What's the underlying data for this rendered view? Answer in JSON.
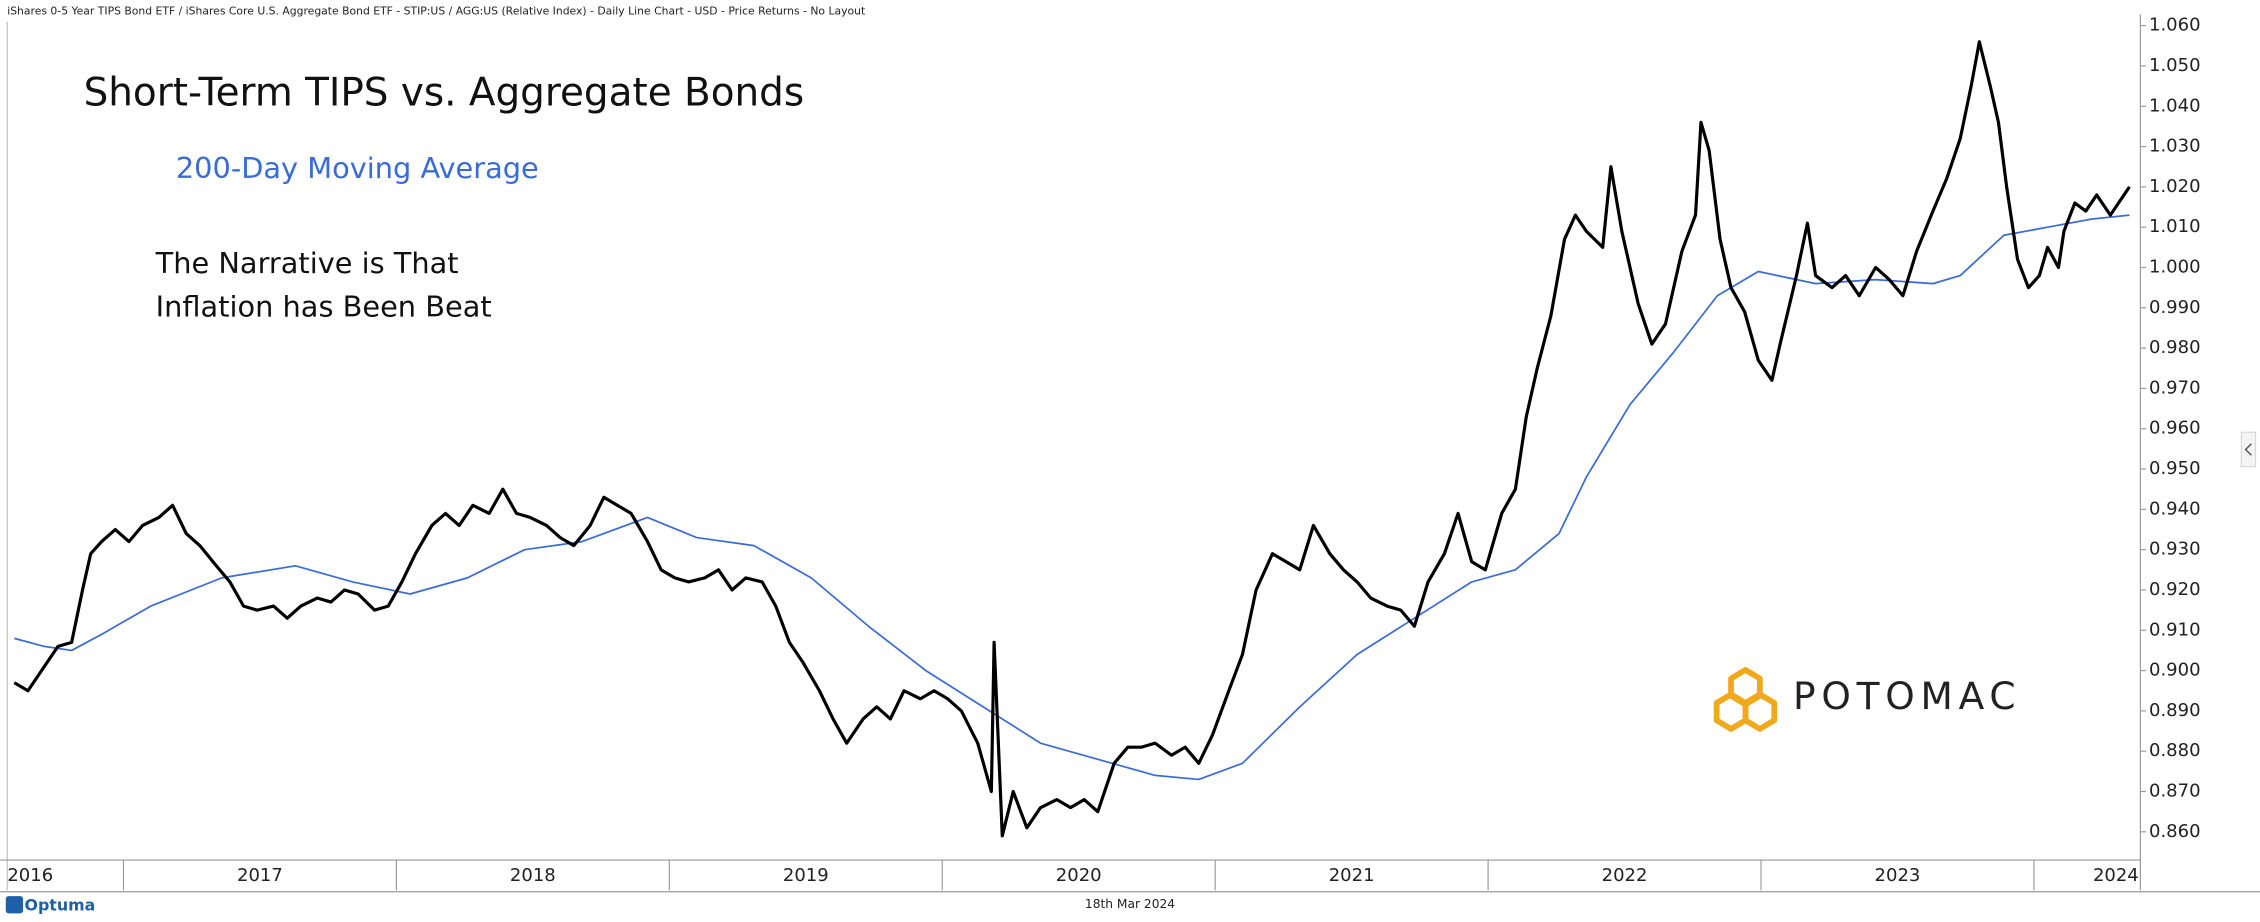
{
  "chart_data": {
    "type": "line",
    "header": "iShares 0-5 Year TIPS Bond ETF / iShares Core U.S. Aggregate Bond ETF - STIP:US / AGG:US (Relative Index) - Daily Line Chart - USD - Price Returns - No Layout",
    "title": "Short-Term TIPS vs. Aggregate Bonds",
    "annotation": [
      "The Narrative is That",
      "Inflation has Been Beat"
    ],
    "brand": "POTOMAC",
    "footer_logo": "Optuma",
    "date_label": "18th Mar 2024",
    "series": [
      {
        "color": "#000000",
        "x": [
          2016.6,
          2016.65,
          2016.68,
          2016.76,
          2016.81,
          2016.85,
          2016.88,
          2016.92,
          2016.97,
          2017.02,
          2017.07,
          2017.13,
          2017.18,
          2017.23,
          2017.28,
          2017.34,
          2017.39,
          2017.44,
          2017.49,
          2017.55,
          2017.6,
          2017.65,
          2017.71,
          2017.76,
          2017.81,
          2017.86,
          2017.92,
          2017.97,
          2018.02,
          2018.07,
          2018.13,
          2018.18,
          2018.23,
          2018.28,
          2018.34,
          2018.39,
          2018.44,
          2018.49,
          2018.55,
          2018.6,
          2018.65,
          2018.71,
          2018.76,
          2018.81,
          2018.86,
          2018.92,
          2018.97,
          2019.02,
          2019.07,
          2019.13,
          2019.18,
          2019.23,
          2019.28,
          2019.34,
          2019.39,
          2019.44,
          2019.49,
          2019.55,
          2019.6,
          2019.65,
          2019.71,
          2019.76,
          2019.81,
          2019.86,
          2019.92,
          2019.97,
          2020.02,
          2020.07,
          2020.13,
          2020.18,
          2020.19,
          2020.22,
          2020.26,
          2020.31,
          2020.36,
          2020.42,
          2020.47,
          2020.52,
          2020.57,
          2020.63,
          2020.68,
          2020.73,
          2020.78,
          2020.84,
          2020.89,
          2020.94,
          2020.99,
          2021.05,
          2021.1,
          2021.15,
          2021.21,
          2021.26,
          2021.31,
          2021.36,
          2021.42,
          2021.47,
          2021.52,
          2021.57,
          2021.63,
          2021.68,
          2021.73,
          2021.78,
          2021.84,
          2021.89,
          2021.94,
          2021.99,
          2022.05,
          2022.1,
          2022.14,
          2022.18,
          2022.23,
          2022.28,
          2022.32,
          2022.36,
          2022.42,
          2022.45,
          2022.49,
          2022.55,
          2022.6,
          2022.65,
          2022.71,
          2022.76,
          2022.78,
          2022.81,
          2022.85,
          2022.89,
          2022.94,
          2022.99,
          2023.04,
          2023.07,
          2023.13,
          2023.17,
          2023.2,
          2023.26,
          2023.31,
          2023.36,
          2023.42,
          2023.47,
          2023.52,
          2023.57,
          2023.63,
          2023.68,
          2023.73,
          2023.77,
          2023.8,
          2023.84,
          2023.87,
          2023.9,
          2023.94,
          2023.98,
          2024.02,
          2024.05,
          2024.09,
          2024.11,
          2024.15,
          2024.19,
          2024.23,
          2024.28,
          2024.31,
          2024.35
        ],
        "values": [
          0.897,
          0.895,
          0.898,
          0.906,
          0.907,
          0.92,
          0.929,
          0.932,
          0.935,
          0.932,
          0.936,
          0.938,
          0.941,
          0.934,
          0.931,
          0.926,
          0.922,
          0.916,
          0.915,
          0.916,
          0.913,
          0.916,
          0.918,
          0.917,
          0.92,
          0.919,
          0.915,
          0.916,
          0.922,
          0.929,
          0.936,
          0.939,
          0.936,
          0.941,
          0.939,
          0.945,
          0.939,
          0.938,
          0.936,
          0.933,
          0.931,
          0.936,
          0.943,
          0.941,
          0.939,
          0.932,
          0.925,
          0.923,
          0.922,
          0.923,
          0.925,
          0.92,
          0.923,
          0.922,
          0.916,
          0.907,
          0.902,
          0.895,
          0.888,
          0.882,
          0.888,
          0.891,
          0.888,
          0.895,
          0.893,
          0.895,
          0.893,
          0.89,
          0.882,
          0.87,
          0.907,
          0.859,
          0.87,
          0.861,
          0.866,
          0.868,
          0.866,
          0.868,
          0.865,
          0.877,
          0.881,
          0.881,
          0.882,
          0.879,
          0.881,
          0.877,
          0.884,
          0.895,
          0.904,
          0.92,
          0.929,
          0.927,
          0.925,
          0.936,
          0.929,
          0.925,
          0.922,
          0.918,
          0.916,
          0.915,
          0.911,
          0.922,
          0.929,
          0.939,
          0.927,
          0.925,
          0.939,
          0.945,
          0.963,
          0.975,
          0.988,
          1.007,
          1.013,
          1.009,
          1.005,
          1.025,
          1.009,
          0.991,
          0.981,
          0.986,
          1.004,
          1.013,
          1.036,
          1.029,
          1.007,
          0.995,
          0.989,
          0.977,
          0.972,
          0.981,
          0.998,
          1.011,
          0.998,
          0.995,
          0.998,
          0.993,
          1.0,
          0.997,
          0.993,
          1.004,
          1.014,
          1.022,
          1.032,
          1.045,
          1.056,
          1.045,
          1.036,
          1.02,
          1.002,
          0.995,
          0.998,
          1.005,
          1.0,
          1.009,
          1.016,
          1.014,
          1.018,
          1.013,
          1.016,
          1.02
        ]
      },
      {
        "name": "200-Day Moving Average",
        "color": "#3a6bd6",
        "x": [
          2016.6,
          2016.71,
          2016.81,
          2016.92,
          2017.1,
          2017.36,
          2017.63,
          2017.84,
          2018.05,
          2018.26,
          2018.47,
          2018.68,
          2018.92,
          2019.1,
          2019.31,
          2019.52,
          2019.73,
          2019.94,
          2020.15,
          2020.36,
          2020.57,
          2020.78,
          2020.94,
          2021.1,
          2021.31,
          2021.52,
          2021.73,
          2021.94,
          2022.1,
          2022.26,
          2022.36,
          2022.52,
          2022.68,
          2022.84,
          2022.99,
          2023.2,
          2023.42,
          2023.63,
          2023.73,
          2023.89,
          2024.05,
          2024.21,
          2024.35
        ],
        "values": [
          0.908,
          0.906,
          0.905,
          0.909,
          0.916,
          0.923,
          0.926,
          0.922,
          0.919,
          0.923,
          0.93,
          0.932,
          0.938,
          0.933,
          0.931,
          0.923,
          0.911,
          0.9,
          0.891,
          0.882,
          0.878,
          0.874,
          0.873,
          0.877,
          0.891,
          0.904,
          0.913,
          0.922,
          0.925,
          0.934,
          0.948,
          0.966,
          0.979,
          0.993,
          0.999,
          0.996,
          0.997,
          0.996,
          0.998,
          1.008,
          1.01,
          1.012,
          1.013
        ]
      }
    ],
    "xlim": [
      2016.574,
      2024.39
    ],
    "xticks": [
      2016,
      2017,
      2018,
      2019,
      2020,
      2021,
      2022,
      2023,
      2024
    ],
    "ylim": [
      0.853,
      1.061
    ],
    "yticks": [
      {
        "value": 0.86,
        "label": "0.860"
      },
      {
        "value": 0.87,
        "label": "0.870"
      },
      {
        "value": 0.88,
        "label": "0.880"
      },
      {
        "value": 0.89,
        "label": "0.890"
      },
      {
        "value": 0.9,
        "label": "0.900"
      },
      {
        "value": 0.91,
        "label": "0.910"
      },
      {
        "value": 0.92,
        "label": "0.920"
      },
      {
        "value": 0.93,
        "label": "0.930"
      },
      {
        "value": 0.94,
        "label": "0.940"
      },
      {
        "value": 0.95,
        "label": "0.950"
      },
      {
        "value": 0.96,
        "label": "0.960"
      },
      {
        "value": 0.97,
        "label": "0.970"
      },
      {
        "value": 0.98,
        "label": "0.980"
      },
      {
        "value": 0.99,
        "label": "0.990"
      },
      {
        "value": 1,
        "label": "1.000"
      },
      {
        "value": 1.01,
        "label": "1.010"
      },
      {
        "value": 1.02,
        "label": "1.020"
      },
      {
        "value": 1.03,
        "label": "1.030"
      },
      {
        "value": 1.04,
        "label": "1.040"
      },
      {
        "value": 1.05,
        "label": "1.050"
      },
      {
        "value": 1.06,
        "label": "1.060"
      }
    ]
  }
}
